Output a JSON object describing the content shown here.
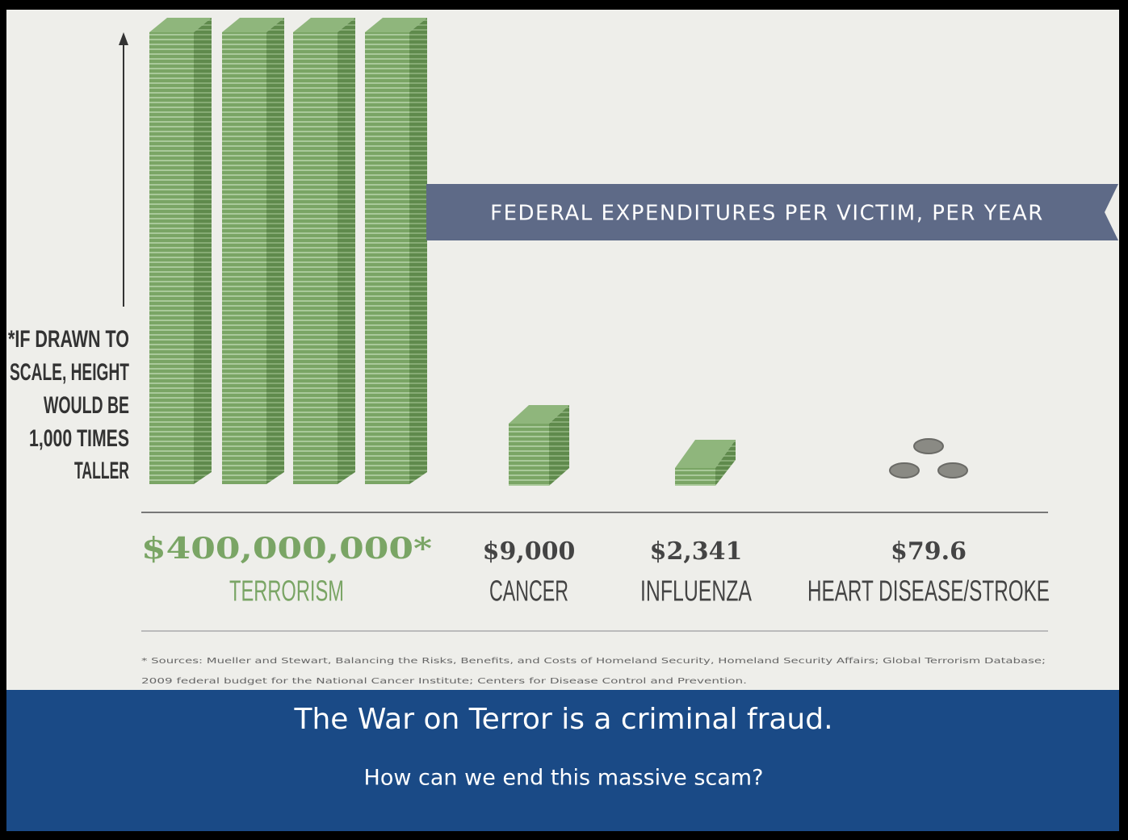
{
  "banner_label": "FEDERAL EXPENDITURES PER VICTIM, PER YEAR",
  "scale_note": [
    "*IF DRAWN TO",
    "SCALE, HEIGHT",
    "WOULD BE",
    "1,000 TIMES",
    "TALLER"
  ],
  "items": [
    {
      "value_label": "$400,000,000*",
      "label": "TERRORISM"
    },
    {
      "value_label": "$9,000",
      "label": "CANCER"
    },
    {
      "value_label": "$2,341",
      "label": "INFLUENZA"
    },
    {
      "value_label": "$79.6",
      "label": "HEART DISEASE/STROKE"
    }
  ],
  "sources": [
    "* Sources: Mueller and Stewart, Balancing the Risks, Benefits, and Costs of Homeland Security, Homeland Security Affairs; Global Terrorism Database;",
    "2009 federal budget for the National Cancer Institute; Centers for Disease Control and Prevention."
  ],
  "caption": {
    "title": "The War on Terror is a criminal fraud.",
    "subtitle": "How can we end this massive scam?"
  }
}
